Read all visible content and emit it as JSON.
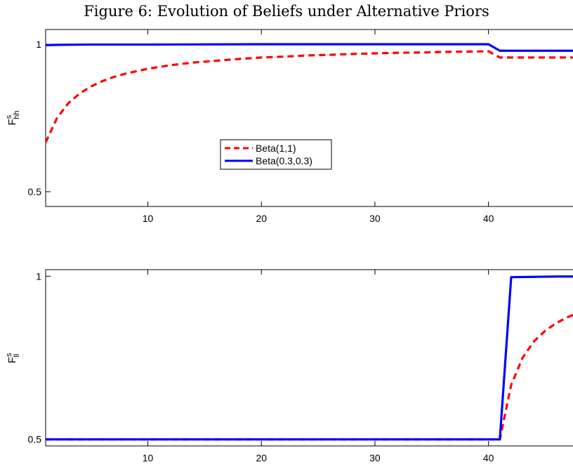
{
  "figure_title": "Figure 6: Evolution of Beliefs under Alternative Priors",
  "colors": {
    "series_beta11": "#ff0000",
    "series_beta0303": "#0000ff",
    "axes": "#000000",
    "background": "#ffffff"
  },
  "chart_data": [
    {
      "type": "line",
      "ylabel": {
        "main": "F",
        "sup": "s",
        "sub": "hh"
      },
      "xlim": [
        1,
        48
      ],
      "ylim": [
        0.45,
        1.05
      ],
      "xticks": [
        10,
        20,
        30,
        40
      ],
      "yticks": [
        0.5,
        1
      ],
      "ytick_labels": [
        "0.5",
        "1"
      ],
      "grid": false,
      "legend": {
        "placement": "center-left",
        "entries": [
          "Beta(1,1)",
          "Beta(0.3,0.3)"
        ]
      },
      "series": [
        {
          "name": "Beta(1,1)",
          "style": "dashed",
          "x": [
            1,
            2,
            3,
            4,
            5,
            6,
            7,
            8,
            10,
            12,
            14,
            16,
            18,
            20,
            22,
            24,
            26,
            28,
            30,
            32,
            34,
            36,
            38,
            40,
            41,
            42,
            44,
            46,
            48
          ],
          "y": [
            0.667,
            0.75,
            0.8,
            0.833,
            0.857,
            0.875,
            0.889,
            0.9,
            0.917,
            0.929,
            0.938,
            0.944,
            0.95,
            0.955,
            0.958,
            0.962,
            0.964,
            0.967,
            0.969,
            0.971,
            0.972,
            0.974,
            0.975,
            0.976,
            0.955,
            0.955,
            0.955,
            0.955,
            0.955
          ]
        },
        {
          "name": "Beta(0.3,0.3)",
          "style": "solid",
          "x": [
            1,
            2,
            5,
            10,
            20,
            30,
            40,
            41,
            42,
            44,
            46,
            48
          ],
          "y": [
            0.997,
            0.998,
            0.999,
            0.999,
            1.0,
            1.0,
            1.0,
            0.978,
            0.978,
            0.978,
            0.978,
            0.978
          ]
        }
      ]
    },
    {
      "type": "line",
      "ylabel": {
        "main": "F",
        "sup": "s",
        "sub": "ll"
      },
      "xlim": [
        1,
        48
      ],
      "ylim": [
        0.48,
        1.02
      ],
      "xticks": [
        10,
        20,
        30,
        40
      ],
      "yticks": [
        0.5,
        1
      ],
      "ytick_labels": [
        "0.5",
        "1"
      ],
      "grid": false,
      "series": [
        {
          "name": "Beta(1,1)",
          "style": "dashed",
          "x": [
            1,
            10,
            20,
            30,
            40,
            41,
            42,
            43,
            44,
            45,
            46,
            47,
            48
          ],
          "y": [
            0.5,
            0.5,
            0.5,
            0.5,
            0.5,
            0.5,
            0.667,
            0.75,
            0.8,
            0.833,
            0.857,
            0.875,
            0.889
          ]
        },
        {
          "name": "Beta(0.3,0.3)",
          "style": "solid",
          "x": [
            1,
            10,
            20,
            30,
            40,
            41,
            42,
            44,
            46,
            48
          ],
          "y": [
            0.5,
            0.5,
            0.5,
            0.5,
            0.5,
            0.5,
            0.997,
            0.998,
            0.999,
            0.999
          ]
        }
      ]
    }
  ]
}
